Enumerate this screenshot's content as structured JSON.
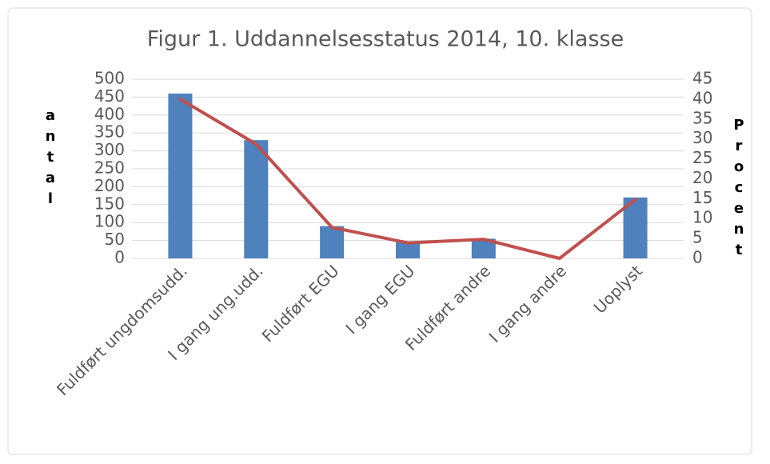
{
  "chart_data": {
    "type": "bar_line",
    "title": "Figur 1. Uddannelsesstatus 2014, 10. klasse",
    "categories": [
      "Fuldført ungdomsudd.",
      "I gang ung.udd.",
      "Fuldført EGU",
      "I gang EGU",
      "Fuldført andre",
      "I gang andre",
      "Uoplyst"
    ],
    "series": [
      {
        "name": "antal",
        "type": "bar",
        "color": "#4f81bd",
        "values": [
          460,
          330,
          90,
          45,
          55,
          0,
          170
        ]
      },
      {
        "name": "Procent",
        "type": "line",
        "axis": "y2",
        "color": "#c0504d",
        "values": [
          40,
          28.7,
          7.8,
          3.9,
          4.8,
          0,
          14.8
        ]
      }
    ],
    "ylabel": "antal",
    "y2label": "Procent",
    "ylim": [
      0,
      500
    ],
    "yticks": [
      0,
      50,
      100,
      150,
      200,
      250,
      300,
      350,
      400,
      450,
      500
    ],
    "y2lim": [
      0,
      45
    ],
    "y2ticks": [
      0,
      5,
      10,
      15,
      20,
      25,
      30,
      35,
      40,
      45
    ],
    "grid": true
  }
}
